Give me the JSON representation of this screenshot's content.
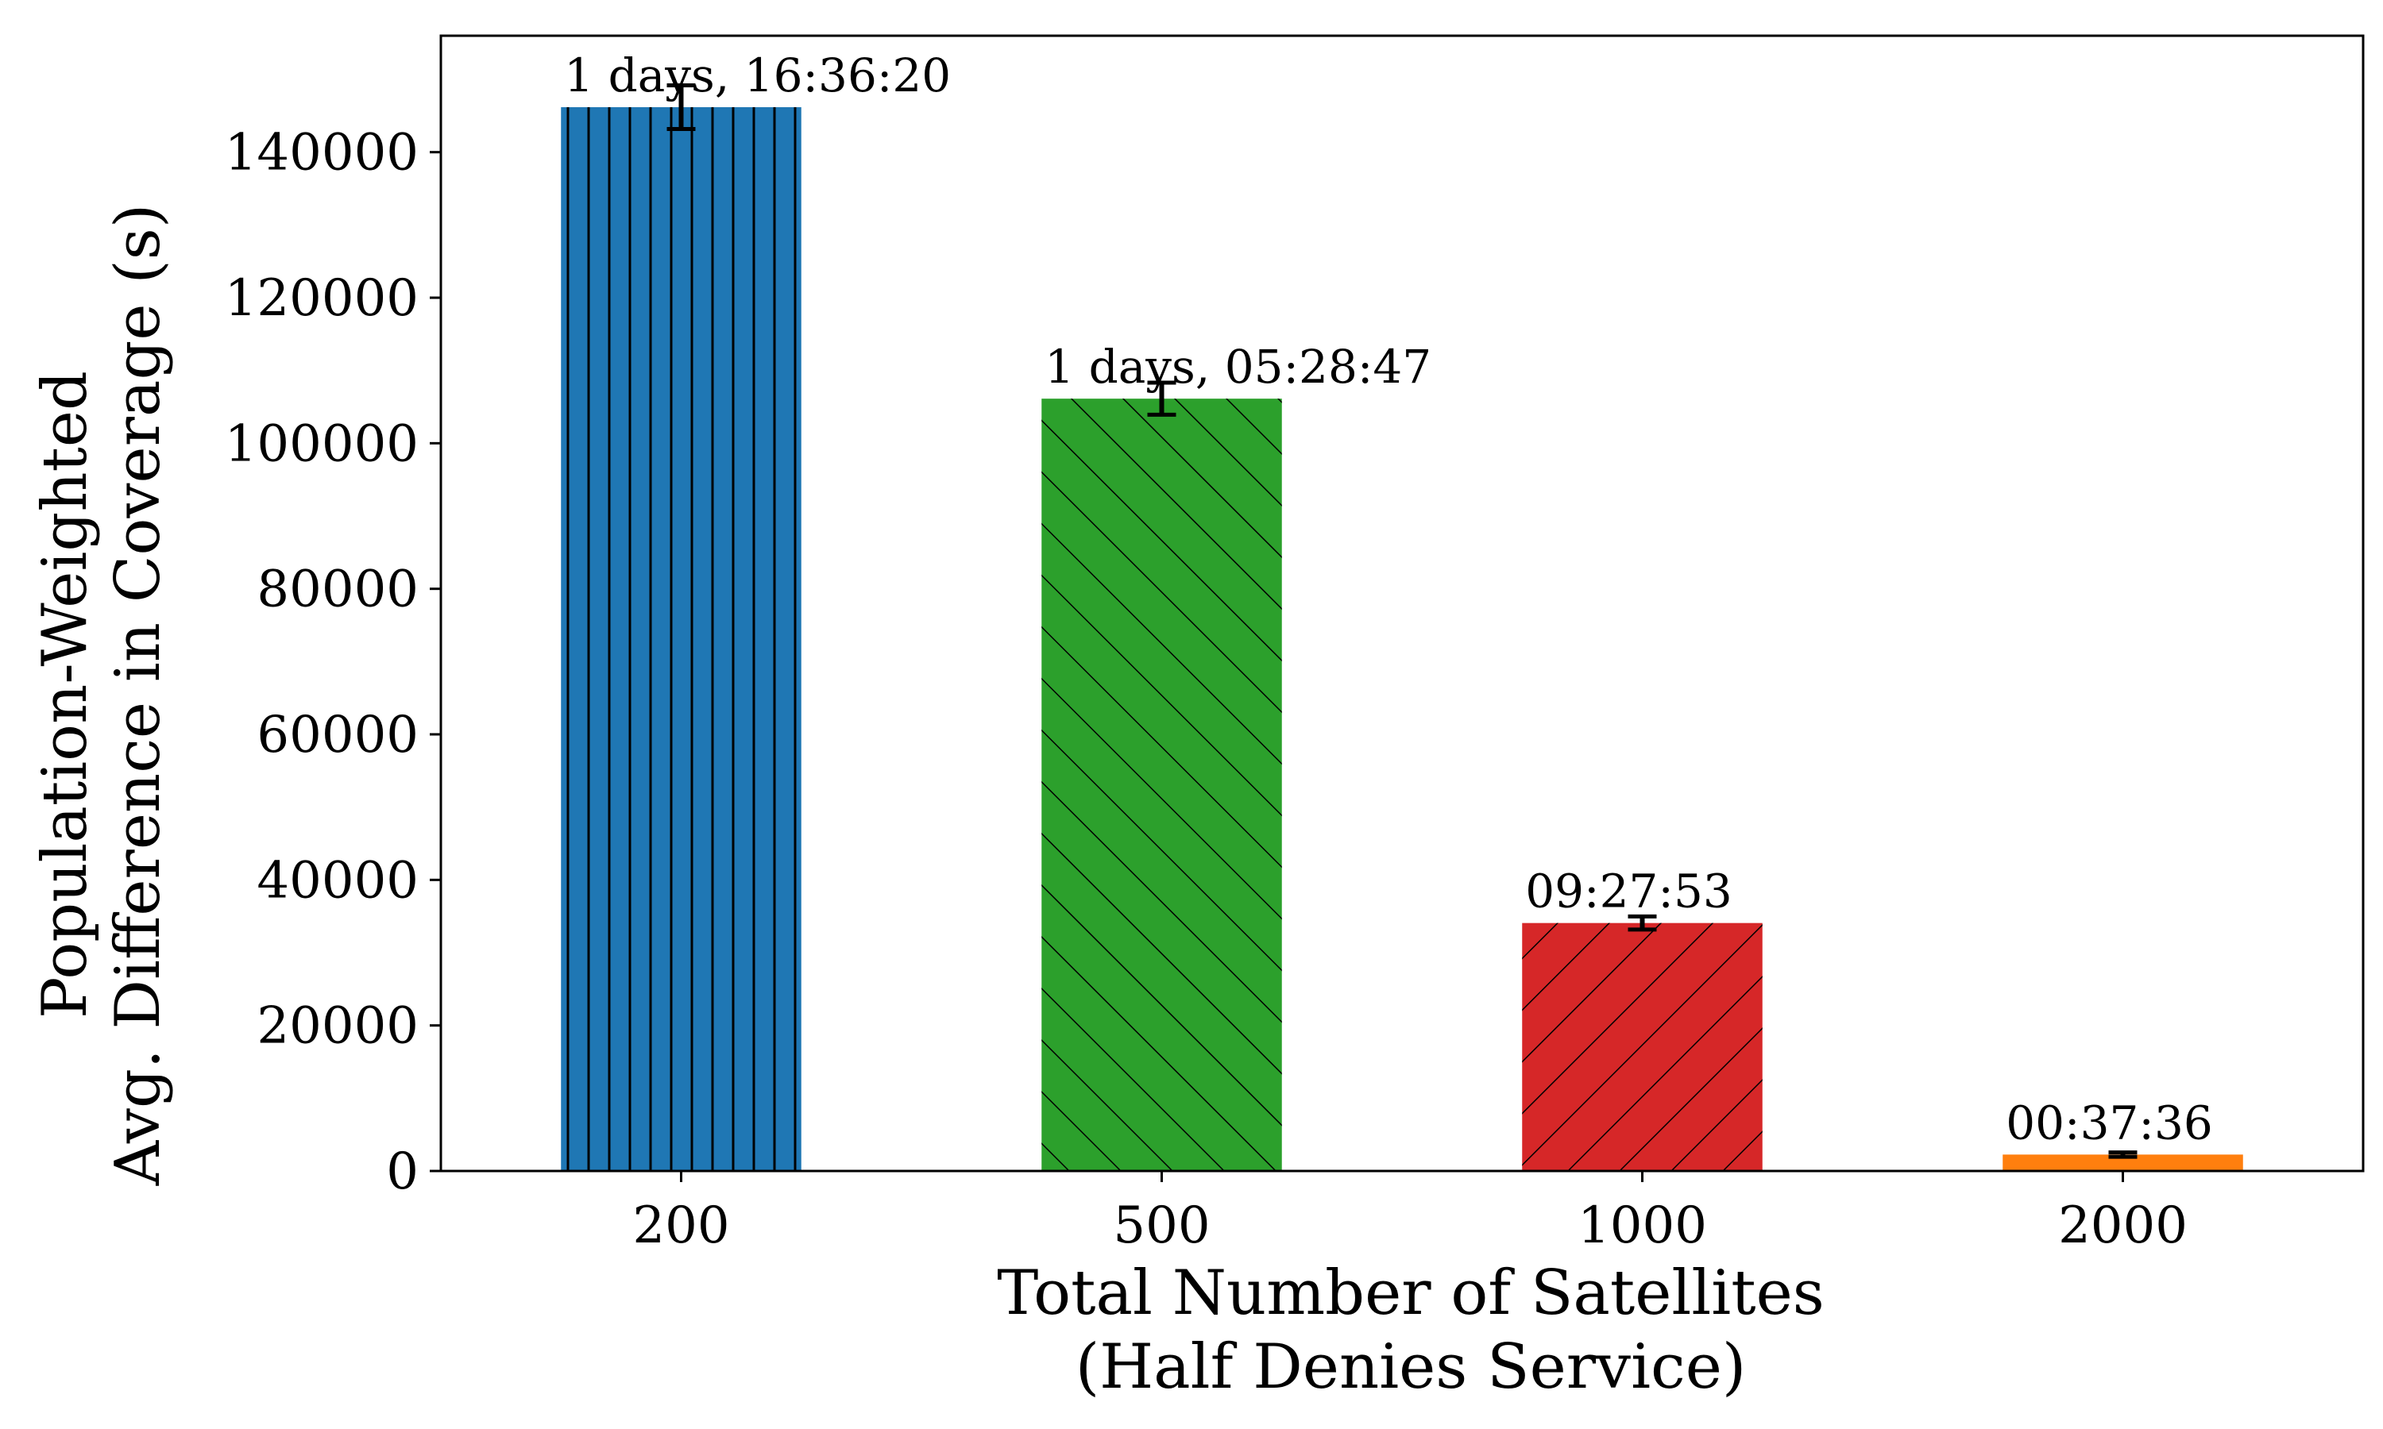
{
  "chart_data": {
    "type": "bar",
    "title": "",
    "xlabel": "Total Number of Satellites",
    "xlabel_line2": "(Half Denies Service)",
    "ylabel": "Population-Weighted",
    "ylabel_line2": "Avg. Difference in Coverage (s)",
    "categories": [
      "200",
      "500",
      "1000",
      "2000"
    ],
    "values": [
      146180,
      106127,
      34073,
      2256
    ],
    "errors": [
      3000,
      2200,
      900,
      300
    ],
    "bar_labels": [
      "1 days, 16:36:20",
      "1 days, 05:28:47",
      "09:27:53",
      "00:37:36"
    ],
    "bar_colors": [
      "#1f77b4",
      "#2ca02c",
      "#d62728",
      "#ff7f0e"
    ],
    "hatches": [
      "vertical",
      "back-diagonal",
      "forward-diagonal",
      "none"
    ],
    "ylim": [
      0,
      156000
    ],
    "yticks": [
      0,
      20000,
      40000,
      60000,
      80000,
      100000,
      120000,
      140000
    ],
    "grid": false,
    "legend": "none"
  }
}
